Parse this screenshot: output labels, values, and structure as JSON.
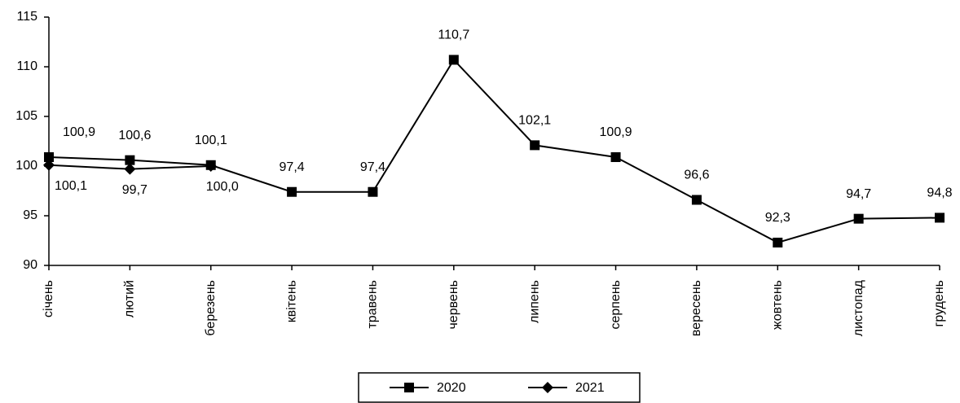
{
  "chart_data": {
    "type": "line",
    "categories": [
      "січень",
      "лютий",
      "березень",
      "квітень",
      "травень",
      "червень",
      "липень",
      "серпень",
      "вересень",
      "жовтень",
      "листопад",
      "грудень"
    ],
    "series": [
      {
        "name": "2020",
        "color": "#000000",
        "marker": "square",
        "values": [
          100.9,
          100.6,
          100.1,
          97.4,
          97.4,
          110.7,
          102.1,
          100.9,
          96.6,
          92.3,
          94.7,
          94.8
        ],
        "value_labels": [
          "100,9",
          "100,6",
          "100,1",
          "97,4",
          "97,4",
          "110,7",
          "102,1",
          "100,9",
          "96,6",
          "92,3",
          "94,7",
          "94,8"
        ]
      },
      {
        "name": "2021",
        "color": "#000000",
        "marker": "diamond",
        "values": [
          100.1,
          99.7,
          100.0,
          null,
          null,
          null,
          null,
          null,
          null,
          null,
          null,
          null
        ],
        "value_labels": [
          "100,1",
          "99,7",
          "100,0",
          null,
          null,
          null,
          null,
          null,
          null,
          null,
          null,
          null
        ]
      }
    ],
    "ylim": [
      90,
      115
    ],
    "yticks": [
      90,
      95,
      100,
      105,
      110,
      115
    ],
    "grid": false
  }
}
